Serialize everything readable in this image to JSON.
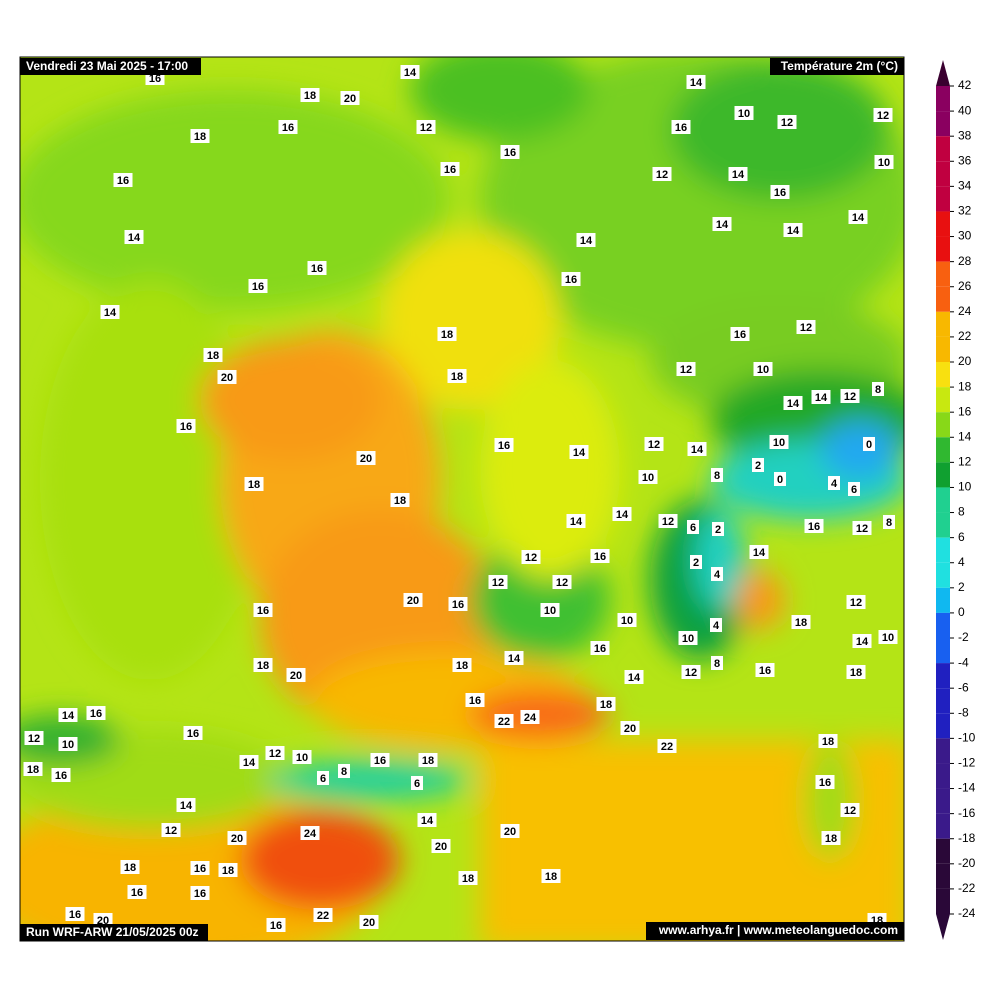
{
  "header": {
    "title": "Vendredi 23 Mai 2025 - 17:00",
    "variable": "Température 2m (°C)",
    "run": "Run WRF-ARW 21/05/2025 00z",
    "credits": "www.arhya.fr | www.meteolanguedoc.com"
  },
  "colorbar": {
    "ticks": [
      42,
      40,
      38,
      36,
      34,
      32,
      30,
      28,
      26,
      24,
      22,
      20,
      18,
      16,
      14,
      12,
      10,
      8,
      6,
      4,
      2,
      0,
      -2,
      -4,
      -6,
      -8,
      -10,
      -12,
      -14,
      -16,
      -18,
      -20,
      -22,
      -24
    ]
  },
  "labels": [
    16,
    14,
    18,
    20,
    16,
    12,
    18,
    14,
    10,
    12,
    12,
    16,
    10,
    16,
    16,
    12,
    14,
    16,
    16,
    14,
    14,
    14,
    14,
    14,
    16,
    16,
    16,
    14,
    16,
    12,
    18,
    18,
    12,
    10,
    20,
    18,
    8,
    12,
    14,
    14,
    16,
    16,
    14,
    12,
    14,
    10,
    0,
    2,
    20,
    10,
    8,
    0,
    4,
    6,
    18,
    18,
    14,
    14,
    12,
    6,
    2,
    16,
    12,
    8,
    14,
    16,
    12,
    2,
    4,
    12,
    12,
    20,
    16,
    10,
    10,
    16,
    12,
    4,
    10,
    18,
    14,
    10,
    16,
    14,
    18,
    18,
    8,
    12,
    16,
    18,
    20,
    14,
    16,
    18,
    14,
    16,
    22,
    24,
    16,
    12,
    10,
    20,
    22,
    18,
    12,
    10,
    14,
    16,
    18,
    18,
    16,
    8,
    6,
    6,
    16,
    14,
    14,
    12,
    12,
    20,
    24,
    20,
    20,
    18,
    18,
    16,
    18,
    16,
    16,
    18,
    18,
    16,
    20,
    22,
    16,
    20,
    18
  ]
}
